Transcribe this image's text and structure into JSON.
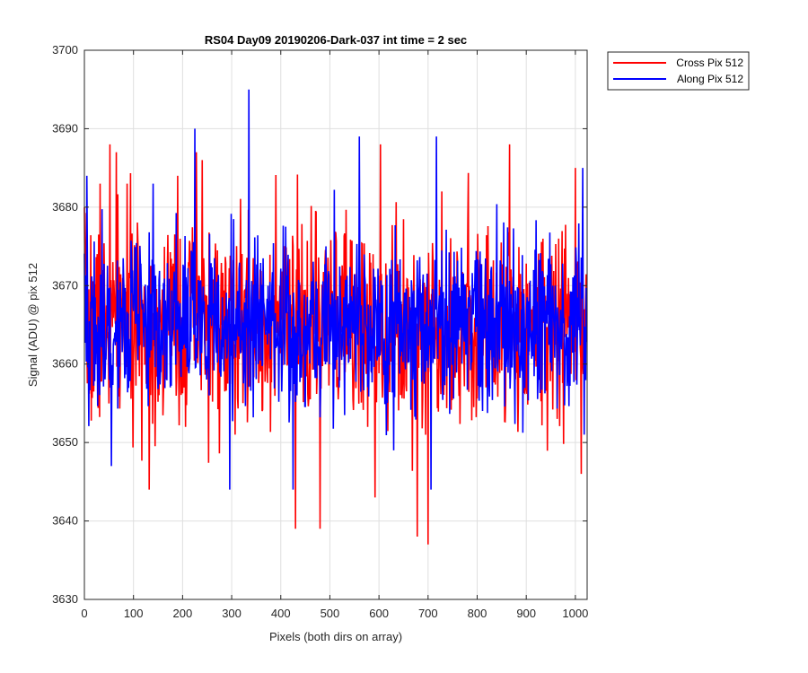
{
  "chart_data": {
    "type": "line",
    "title": "RS04 Day09 20190206-Dark-037 int time = 2 sec",
    "xlabel": "Pixels (both dirs on array)",
    "ylabel": "Signal (ADU) @ pix 512",
    "xlim": [
      0,
      1024
    ],
    "ylim": [
      3630,
      3700
    ],
    "xticks": [
      0,
      100,
      200,
      300,
      400,
      500,
      600,
      700,
      800,
      900,
      1000
    ],
    "yticks": [
      3630,
      3640,
      3650,
      3660,
      3670,
      3680,
      3690,
      3700
    ],
    "grid": true,
    "legend_position": "outside-top-right",
    "n_points": 1024,
    "series": [
      {
        "name": "Cross Pix 512",
        "color": "#ff0000",
        "mean": 3665,
        "noise_std": 6.2,
        "seed": 7,
        "spikes": [
          {
            "x": 0,
            "y": 3680
          },
          {
            "x": 32,
            "y": 3683
          },
          {
            "x": 52,
            "y": 3688
          },
          {
            "x": 65,
            "y": 3687
          },
          {
            "x": 87,
            "y": 3683
          },
          {
            "x": 132,
            "y": 3644
          },
          {
            "x": 190,
            "y": 3684
          },
          {
            "x": 228,
            "y": 3687
          },
          {
            "x": 240,
            "y": 3686
          },
          {
            "x": 307,
            "y": 3651
          },
          {
            "x": 430,
            "y": 3639
          },
          {
            "x": 480,
            "y": 3639
          },
          {
            "x": 592,
            "y": 3643
          },
          {
            "x": 603,
            "y": 3688
          },
          {
            "x": 678,
            "y": 3638
          },
          {
            "x": 700,
            "y": 3637
          },
          {
            "x": 728,
            "y": 3682
          },
          {
            "x": 866,
            "y": 3688
          },
          {
            "x": 1000,
            "y": 3685
          },
          {
            "x": 1012,
            "y": 3646
          }
        ]
      },
      {
        "name": "Along Pix 512",
        "color": "#0000ff",
        "mean": 3665,
        "noise_std": 5.4,
        "seed": 19,
        "spikes": [
          {
            "x": 5,
            "y": 3684
          },
          {
            "x": 55,
            "y": 3647
          },
          {
            "x": 140,
            "y": 3683
          },
          {
            "x": 225,
            "y": 3690
          },
          {
            "x": 296,
            "y": 3644
          },
          {
            "x": 335,
            "y": 3695
          },
          {
            "x": 425,
            "y": 3644
          },
          {
            "x": 560,
            "y": 3689
          },
          {
            "x": 630,
            "y": 3649
          },
          {
            "x": 706,
            "y": 3644
          },
          {
            "x": 717,
            "y": 3689
          },
          {
            "x": 1015,
            "y": 3685
          },
          {
            "x": 1018,
            "y": 3651
          }
        ]
      }
    ]
  }
}
